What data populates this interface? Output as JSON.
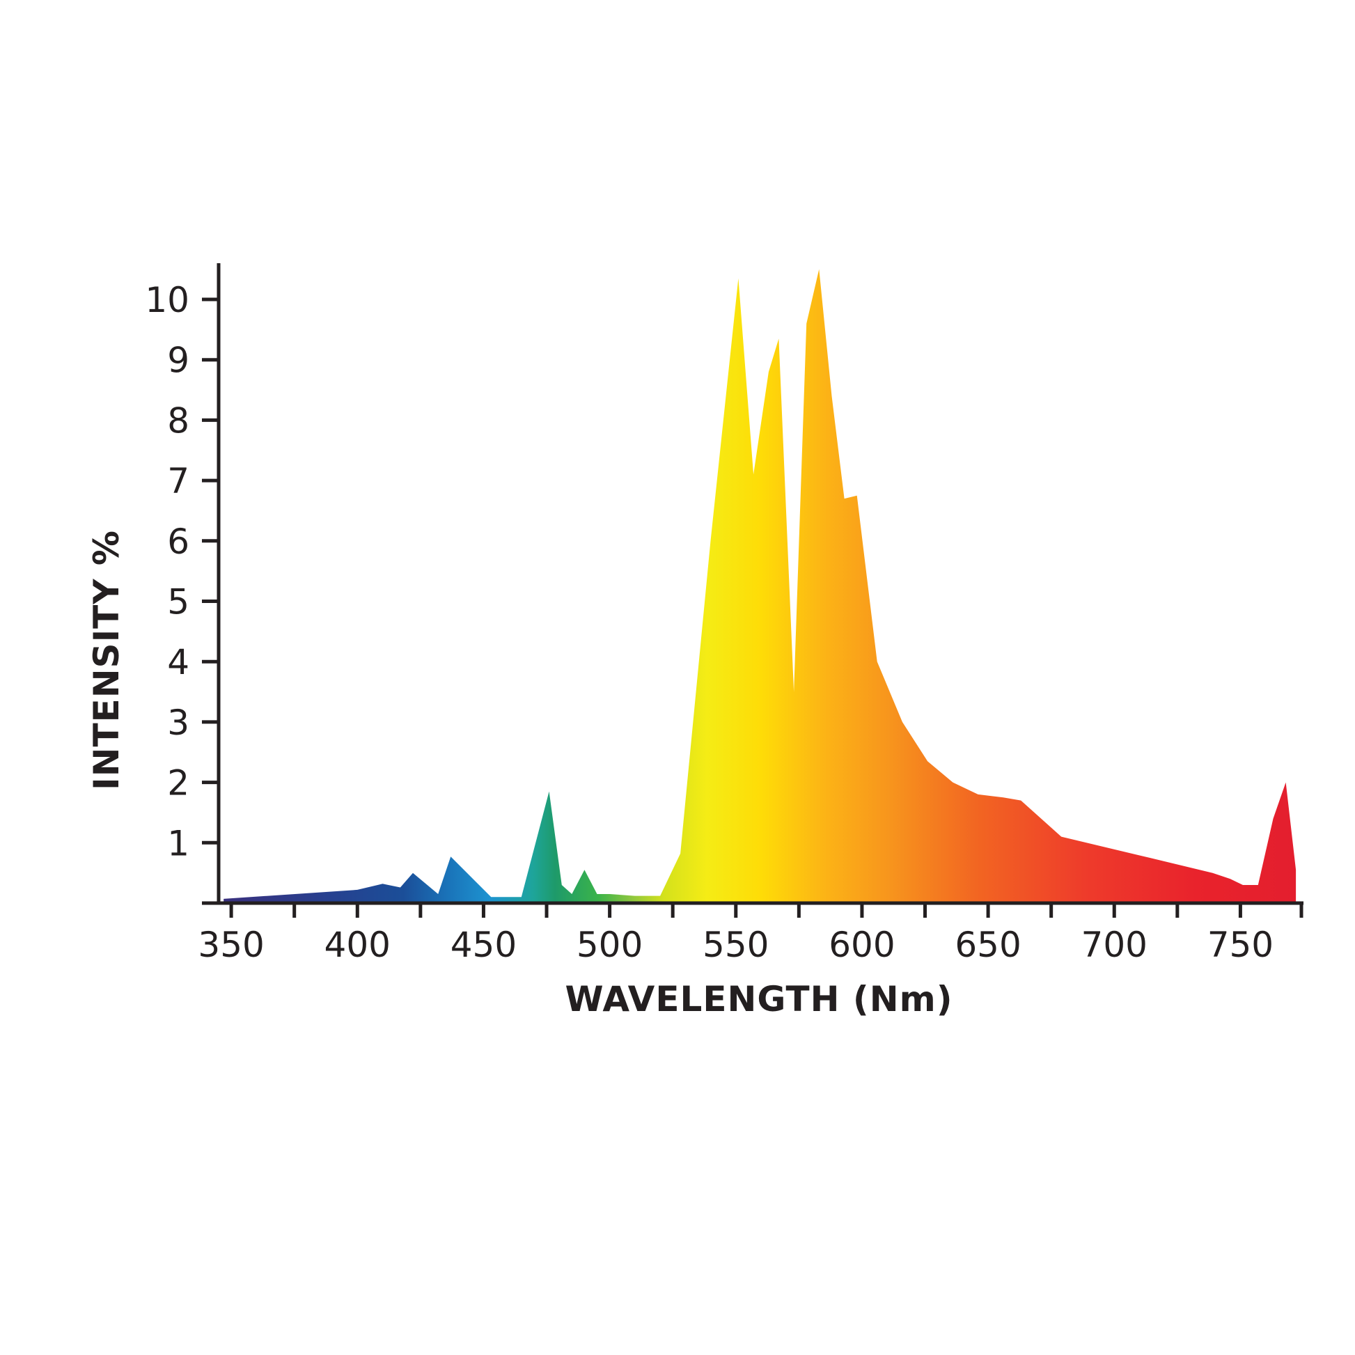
{
  "chart_data": {
    "type": "area",
    "xlabel": "WAVELENGTH (Nm)",
    "ylabel": "INTENSITY %",
    "xlim": [
      345,
      775
    ],
    "ylim": [
      0,
      10
    ],
    "x_ticks": [
      350,
      400,
      450,
      500,
      550,
      600,
      650,
      700,
      750
    ],
    "x_minor_ticks": [
      375,
      425,
      475,
      525,
      575,
      625,
      675,
      725,
      775
    ],
    "y_ticks": [
      1,
      2,
      3,
      4,
      5,
      6,
      7,
      8,
      9,
      10
    ],
    "grid": false,
    "legend": "none",
    "fill": "rainbow spectrum gradient (violet to red)",
    "series": [
      {
        "x": [
          347,
          400,
          410,
          417,
          422,
          432,
          437,
          453,
          465,
          476,
          481,
          485,
          490,
          495,
          500,
          510,
          520,
          528,
          540,
          551,
          557,
          563,
          567,
          573,
          578,
          583,
          588,
          593,
          598,
          606,
          616,
          626,
          636,
          646,
          656,
          663,
          679,
          694,
          709,
          724,
          739,
          746,
          751,
          757,
          763,
          768,
          772
        ],
        "values": [
          0.07,
          0.22,
          0.32,
          0.26,
          0.5,
          0.15,
          0.77,
          0.1,
          0.1,
          1.85,
          0.3,
          0.15,
          0.55,
          0.15,
          0.15,
          0.12,
          0.12,
          0.82,
          6.0,
          10.35,
          7.1,
          8.8,
          9.35,
          3.5,
          9.6,
          10.5,
          8.4,
          6.7,
          6.75,
          4.0,
          3.0,
          2.35,
          2.0,
          1.8,
          1.75,
          1.7,
          1.1,
          0.95,
          0.8,
          0.65,
          0.5,
          0.4,
          0.3,
          0.3,
          1.4,
          2.0,
          0.55
        ]
      }
    ]
  }
}
